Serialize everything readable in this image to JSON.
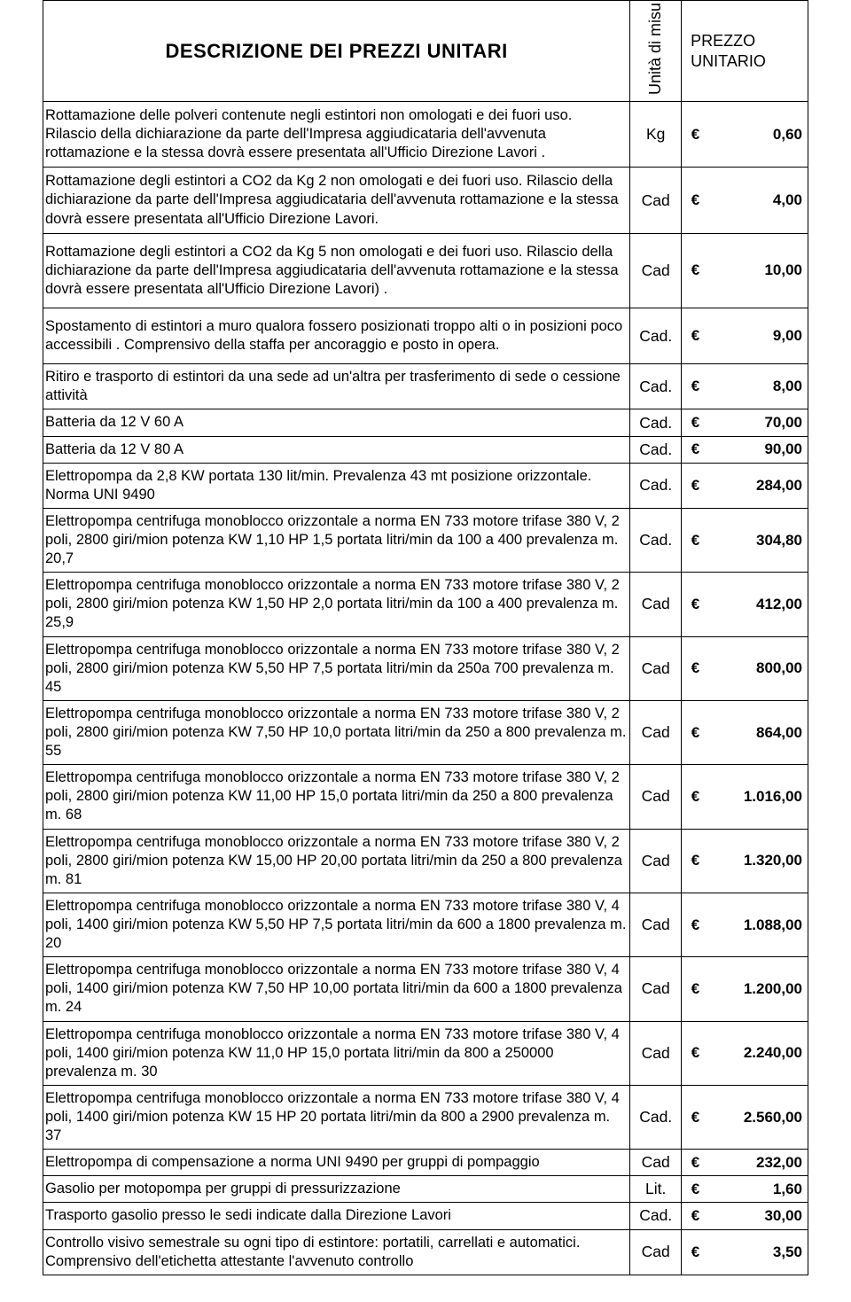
{
  "header": {
    "title": "DESCRIZIONE  DEI  PREZZI  UNITARI",
    "unit_label": "Unità  di  misu",
    "price_label": "PREZZO UNITARIO"
  },
  "currency_symbol": "€",
  "rows": [
    {
      "desc": "Rottamazione  delle polveri contenute negli estintori   non omologati   e dei fuori uso. Rilascio   della dichiarazione da parte dell'Impresa aggiudicataria   dell'avvenuta rottamazione e la stessa dovrà essere presentata all'Ufficio Direzione Lavori .",
      "unit": "Kg",
      "price": "0,60",
      "class": "med"
    },
    {
      "desc": "Rottamazione  degli estintori  a CO2  da Kg  2  non omologati   e dei fuori uso.  Rilascio della dichiarazione da parte dell'Impresa aggiudicataria  dell'avvenuta rottamazione e la stessa dovrà essere presentata all'Ufficio Direzione Lavori.",
      "unit": "Cad",
      "price": "4,00",
      "class": "med"
    },
    {
      "desc": "Rottamazione  degli estintori  a CO2  da Kg  5  non omologati   e dei fuori uso.  Rilascio della dichiarazione da parte dell'Impresa aggiudicataria  dell'avvenuta rottamazione e la stessa dovrà essere presentata all'Ufficio Direzione Lavori) .",
      "unit": "Cad",
      "price": "10,00",
      "class": "tall"
    },
    {
      "desc": "Spostamento  di estintori a muro  qualora fossero posizionati  troppo  alti o   in posizioni poco accessibili .   Comprensivo della  staffa per  ancoraggio  e posto in opera.",
      "unit": "Cad.",
      "price": "9,00",
      "class": "tall"
    },
    {
      "desc": "Ritiro e trasporto di estintori da una sede ad un'altra per  trasferimento di sede      o cessione  attività",
      "unit": "Cad.",
      "price": "8,00",
      "class": ""
    },
    {
      "desc": "Batteria   da  12 V  60 A",
      "unit": "Cad.",
      "price": "70,00",
      "class": ""
    },
    {
      "desc": "Batteria   da 12 V  80 A",
      "unit": "Cad.",
      "price": "90,00",
      "class": ""
    },
    {
      "desc": "Elettropompa da 2,8 KW portata 130 lit/min.  Prevalenza 43 mt  posizione orizzontale. Norma UNI  9490",
      "unit": "Cad.",
      "price": "284,00",
      "class": ""
    },
    {
      "desc": "Elettropompa  centrifuga monoblocco orizzontale a norma  EN 733 motore trifase 380 V, 2 poli,  2800 giri/mion potenza KW  1,10 HP 1,5 portata litri/min da 100 a 400  prevalenza m. 20,7",
      "unit": "Cad.",
      "price": "304,80",
      "class": ""
    },
    {
      "desc": "Elettropompa  centrifuga monoblocco orizzontale a norma  EN 733 motore trifase 380 V, 2 poli,  2800 giri/mion potenza KW  1,50 HP 2,0  portata litri/min da 100 a 400  prevalenza m. 25,9",
      "unit": "Cad",
      "price": "412,00",
      "class": ""
    },
    {
      "desc": "Elettropompa  centrifuga monoblocco orizzontale a norma  EN 733 motore trifase 380 V, 2 poli,  2800 giri/mion potenza KW  5,50 HP 7,5  portata litri/min da 250a 700  prevalenza m. 45",
      "unit": "Cad",
      "price": "800,00",
      "class": ""
    },
    {
      "desc": "Elettropompa  centrifuga monoblocco orizzontale a norma  EN 733 motore trifase 380 V, 2 poli,  2800 giri/mion potenza KW  7,50 HP 10,0  portata litri/min da 250 a 800  prevalenza m. 55",
      "unit": "Cad",
      "price": "864,00",
      "class": ""
    },
    {
      "desc": "Elettropompa  centrifuga monoblocco orizzontale a norma  EN 733 motore trifase 380 V, 2 poli,  2800 giri/mion potenza KW  11,00 HP 15,0  portata litri/min da 250 a 800  prevalenza m. 68",
      "unit": "Cad",
      "price": "1.016,00",
      "class": ""
    },
    {
      "desc": "Elettropompa  centrifuga monoblocco orizzontale a norma  EN 733 motore trifase 380 V, 2 poli,  2800 giri/mion potenza KW  15,00 HP 20,00 portata litri/min da 250 a 800  prevalenza m. 81",
      "unit": "Cad",
      "price": "1.320,00",
      "class": ""
    },
    {
      "desc": "Elettropompa  centrifuga monoblocco orizzontale a norma  EN 733 motore trifase 380 V, 4 poli,  1400 giri/mion potenza KW  5,50 HP 7,5  portata litri/min da 600 a 1800  prevalenza m. 20",
      "unit": "Cad",
      "price": "1.088,00",
      "class": ""
    },
    {
      "desc": "Elettropompa  centrifuga monoblocco orizzontale a norma  EN 733 motore trifase 380 V, 4 poli,  1400 giri/mion potenza KW  7,50 HP 10,00  portata litri/min da 600 a 1800  prevalenza m. 24",
      "unit": "Cad",
      "price": "1.200,00",
      "class": ""
    },
    {
      "desc": "Elettropompa  centrifuga monoblocco orizzontale a norma  EN 733 motore trifase 380 V, 4 poli,  1400 giri/mion potenza KW  11,0 HP 15,0 portata litri/min da 800 a 250000  prevalenza m. 30",
      "unit": "Cad",
      "price": "2.240,00",
      "class": ""
    },
    {
      "desc": "Elettropompa  centrifuga monoblocco orizzontale a norma  EN 733 motore trifase 380 V, 4 poli,  1400 giri/mion potenza KW  15 HP 20 portata litri/min da 800 a 2900  prevalenza m. 37",
      "unit": "Cad.",
      "price": "2.560,00",
      "class": ""
    },
    {
      "desc": "Elettropompa di compensazione   a norma UNI  9490 per gruppi di pompaggio",
      "unit": "Cad",
      "price": "232,00",
      "class": ""
    },
    {
      "desc": "Gasolio  per motopompa  per gruppi di pressurizzazione",
      "unit": "Lit.",
      "price": "1,60",
      "class": ""
    },
    {
      "desc": "Trasporto gasolio presso  le sedi  indicate dalla Direzione Lavori",
      "unit": "Cad.",
      "price": "30,00",
      "class": ""
    },
    {
      "desc": "Controllo visivo semestrale su ogni tipo di estintore: portatili, carrellati e automatici. Comprensivo dell'etichetta attestante l'avvenuto controllo",
      "unit": "Cad",
      "price": "3,50",
      "class": ""
    }
  ]
}
